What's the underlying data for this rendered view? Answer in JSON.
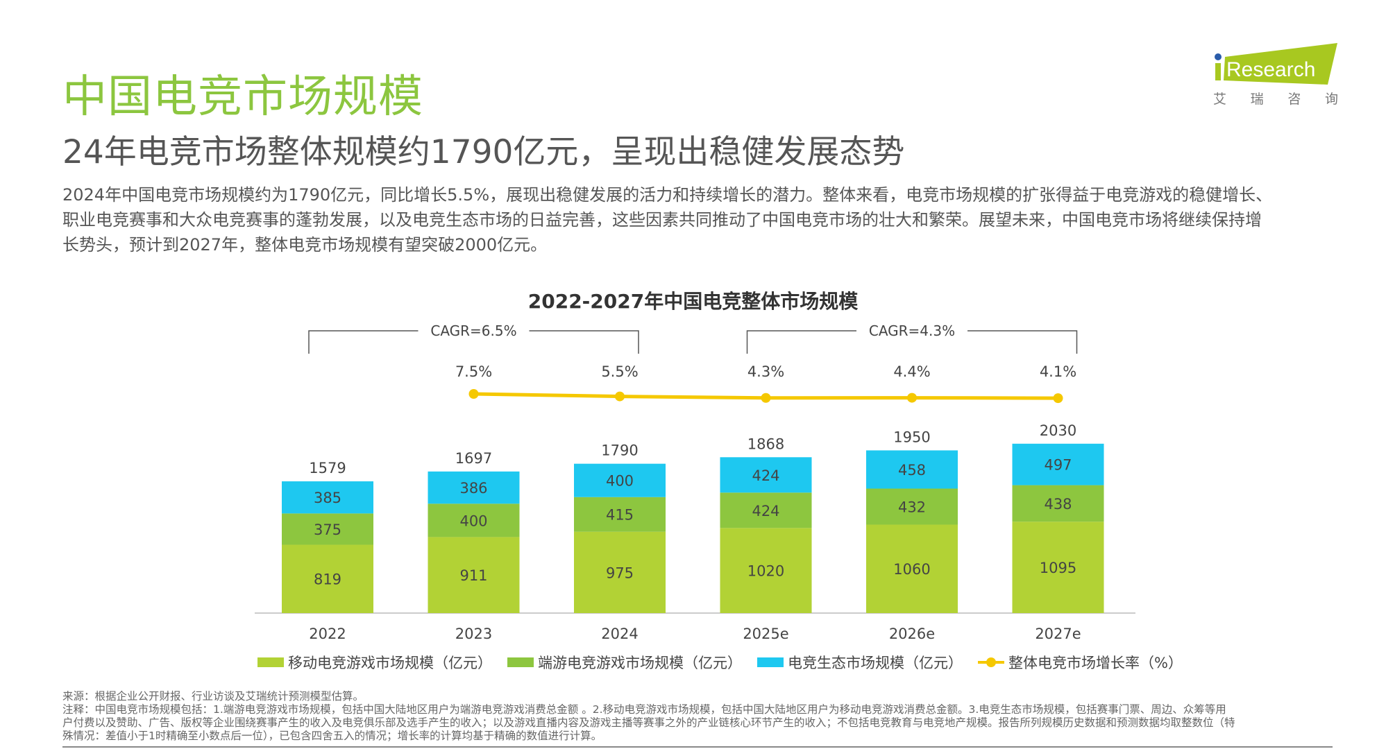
{
  "header": {
    "title": "中国电竞市场规模",
    "subtitle": "24年电竞市场整体规模约1790亿元，呈现出稳健发展态势",
    "paragraph_lines": [
      "2024年中国电竞市场规模约为1790亿元，同比增长5.5%，展现出稳健发展的活力和持续增长的潜力。整体来看，电竞市场规模的扩张得益于电竞游戏的稳健增长、",
      "职业电竞赛事和大众电竞赛事的蓬勃发展，以及电竞生态市场的日益完善，这些因素共同推动了中国电竞市场的壮大和繁荣。展望未来，中国电竞市场将继续保持增",
      "长势头，预计到2027年，整体电竞市场规模有望突破2000亿元。"
    ]
  },
  "logo": {
    "text": "iResearch",
    "subtitle": [
      "艾",
      "瑞",
      "咨",
      "询"
    ],
    "color": "#a8c820",
    "dot_color": "#2a5caa"
  },
  "chart_data": {
    "type": "bar",
    "stacked": true,
    "title": "2022-2027年中国电竞整体市场规模",
    "categories": [
      "2022",
      "2023",
      "2024",
      "2025e",
      "2026e",
      "2027e"
    ],
    "series": [
      {
        "name": "移动电竞游戏市场规模（亿元）",
        "color": "#b2d235",
        "values": [
          819,
          911,
          975,
          1020,
          1060,
          1095
        ]
      },
      {
        "name": "端游电竞游戏市场规模（亿元）",
        "color": "#8dc63f",
        "values": [
          375,
          400,
          415,
          424,
          432,
          438
        ]
      },
      {
        "name": "电竞生态市场规模（亿元）",
        "color": "#1ec8f0",
        "values": [
          385,
          386,
          400,
          424,
          458,
          497
        ]
      }
    ],
    "totals": [
      1579,
      1697,
      1790,
      1868,
      1950,
      2030
    ],
    "line_series": {
      "name": "整体电竞市场增长率（%）",
      "color": "#f5c800",
      "categories": [
        "2023",
        "2024",
        "2025e",
        "2026e",
        "2027e"
      ],
      "values": [
        7.5,
        5.5,
        4.3,
        4.4,
        4.1
      ],
      "labels": [
        "7.5%",
        "5.5%",
        "4.3%",
        "4.4%",
        "4.1%"
      ]
    },
    "annotations": [
      {
        "text": "CAGR=6.5%",
        "from": "2022",
        "to": "2024"
      },
      {
        "text": "CAGR=4.3%",
        "from": "2025e",
        "to": "2027e"
      }
    ],
    "legend_position": "bottom",
    "grid": false
  },
  "footer": {
    "lines": [
      "来源：根据企业公开财报、行业访谈及艾瑞统计预测模型估算。",
      "注释：中国电竞市场规模包括：1.端游电竞游戏市场规模，包括中国大陆地区用户为端游电竞游戏消费总金额 。2.移动电竞游戏市场规模，包括中国大陆地区用户为移动电竞游戏消费总金额。3.电竞生态市场规模，包括赛事门票、周边、众筹等用",
      "户付费以及赞助、广告、版权等企业围绕赛事产生的收入及电竞俱乐部及选手产生的收入；以及游戏直播内容及游戏主播等赛事之外的产业链核心环节产生的收入；不包括电竞教育与电竞地产规模。报告所列规模历史数据和预测数据均取整数位（特",
      "殊情况：差值小于1时精确至小数点后一位），已包含四舍五入的情况；增长率的计算均基于精确的数值进行计算。"
    ]
  }
}
